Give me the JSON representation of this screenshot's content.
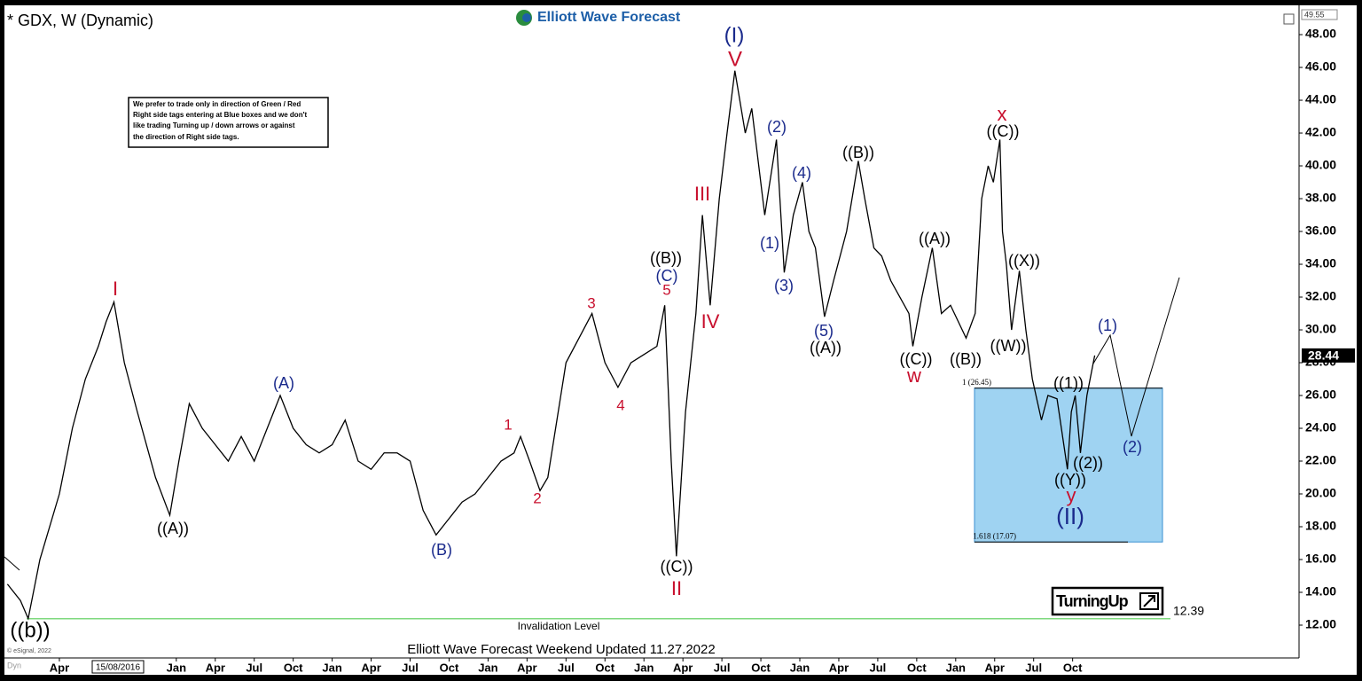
{
  "chart_data": {
    "type": "line",
    "title": "* GDX, W (Dynamic)",
    "logo": "Elliott Wave Forecast",
    "footer": "Elliott Wave Forecast Weekend Updated 11.27.2022",
    "corner_label": "Dyn",
    "copyright": "© eSignal, 2022",
    "cursor_date": "15/08/2016",
    "badge": "TurningUp",
    "note": [
      "We prefer to trade only in direction of Green / Red",
      "Right side tags entering at Blue boxes and we don't",
      "like trading Turning up / down arrows or against",
      "the direction of Right side tags."
    ],
    "xlim": [
      -1.23,
      98.43
    ],
    "ylim": [
      10,
      49.57
    ],
    "xticks": [
      {
        "value": 3,
        "label": "Apr"
      },
      {
        "value": 12,
        "label": "Jan"
      },
      {
        "value": 15,
        "label": "Apr"
      },
      {
        "value": 18,
        "label": "Jul"
      },
      {
        "value": 21,
        "label": "Oct"
      },
      {
        "value": 24,
        "label": "Jan"
      },
      {
        "value": 27,
        "label": "Apr"
      },
      {
        "value": 30,
        "label": "Jul"
      },
      {
        "value": 33,
        "label": "Oct"
      },
      {
        "value": 36,
        "label": "Jan"
      },
      {
        "value": 39,
        "label": "Apr"
      },
      {
        "value": 42,
        "label": "Jul"
      },
      {
        "value": 45,
        "label": "Oct"
      },
      {
        "value": 48,
        "label": "Jan"
      },
      {
        "value": 51,
        "label": "Apr"
      },
      {
        "value": 54,
        "label": "Jul"
      },
      {
        "value": 57,
        "label": "Oct"
      },
      {
        "value": 60,
        "label": "Jan"
      },
      {
        "value": 63,
        "label": "Apr"
      },
      {
        "value": 66,
        "label": "Jul"
      },
      {
        "value": 69,
        "label": "Oct"
      },
      {
        "value": 72,
        "label": "Jan"
      },
      {
        "value": 75,
        "label": "Apr"
      },
      {
        "value": 78,
        "label": "Jul"
      },
      {
        "value": 81,
        "label": "Oct"
      }
    ],
    "yticks": [
      {
        "value": 12,
        "label": "12.00"
      },
      {
        "value": 14,
        "label": "14.00"
      },
      {
        "value": 16,
        "label": "16.00"
      },
      {
        "value": 18,
        "label": "18.00"
      },
      {
        "value": 20,
        "label": "20.00"
      },
      {
        "value": 22,
        "label": "22.00"
      },
      {
        "value": 24,
        "label": "24.00"
      },
      {
        "value": 26,
        "label": "26.00"
      },
      {
        "value": 28,
        "label": "28.00"
      },
      {
        "value": 30,
        "label": "30.00"
      },
      {
        "value": 32,
        "label": "32.00"
      },
      {
        "value": 34,
        "label": "34.00"
      },
      {
        "value": 36,
        "label": "36.00"
      },
      {
        "value": 38,
        "label": "38.00"
      },
      {
        "value": 40,
        "label": "40.00"
      },
      {
        "value": 42,
        "label": "42.00"
      },
      {
        "value": 44,
        "label": "44.00"
      },
      {
        "value": 46,
        "label": "46.00"
      },
      {
        "value": 48,
        "label": "48.00"
      }
    ],
    "grid": false,
    "series": [
      {
        "name": "GDX",
        "color": "#000000",
        "x": [
          -1,
          0,
          0.6,
          1.5,
          3,
          4,
          5,
          6,
          6.6,
          7.2,
          8,
          9,
          10.4,
          11.5,
          12.2,
          13,
          14,
          15,
          16,
          17,
          18,
          19,
          20,
          21,
          22,
          23,
          24,
          25,
          26,
          27,
          28,
          29,
          30,
          31,
          32,
          33,
          34,
          35,
          36,
          37,
          38,
          38.5,
          39.2,
          40,
          40.6,
          41,
          42,
          43,
          44,
          45,
          46,
          47,
          48,
          49,
          49.6,
          50.1,
          50.5,
          51.2,
          52,
          52.5,
          53.1,
          53.8,
          54.4,
          55.0,
          55.8,
          56.3,
          57.3,
          58.2,
          58.8,
          59.5,
          60.2,
          60.7,
          61.2,
          61.9,
          62.6,
          63.6,
          64.5,
          65.0,
          65.7,
          66.3,
          67.0,
          67.7,
          68.4,
          68.7,
          69.4,
          70.2,
          70.9,
          71.6,
          72.8,
          73.5,
          74.0,
          74.5,
          74.9,
          75.4,
          75.6,
          75.9,
          76.3,
          76.9,
          77.4,
          77.9,
          78.6,
          79.1,
          79.8,
          80.6,
          80.9,
          81.2,
          81.6,
          82.1,
          82.7
        ],
        "values": [
          14.5,
          13.5,
          12.4,
          16,
          20,
          24,
          27,
          29,
          30.5,
          31.7,
          28,
          25,
          21,
          18.7,
          22,
          25.5,
          24,
          23,
          22,
          23.5,
          22,
          24,
          26,
          24,
          23,
          22.5,
          23,
          24.5,
          22,
          21.5,
          22.5,
          22.5,
          22,
          19,
          17.5,
          18.5,
          19.5,
          20,
          21,
          22,
          22.5,
          23.5,
          22,
          20.2,
          21,
          23,
          28,
          29.5,
          31,
          28,
          26.5,
          28,
          28.5,
          29,
          31.5,
          22,
          16.2,
          25,
          31,
          37,
          31.5,
          38,
          42,
          45.8,
          42,
          43.5,
          37,
          41.6,
          33.5,
          37,
          39,
          36,
          35,
          30.8,
          33,
          36,
          40.3,
          38,
          35,
          34.5,
          33,
          32,
          31,
          29,
          32,
          35,
          31,
          31.5,
          29.5,
          31,
          38,
          40,
          39,
          41.6,
          36,
          34,
          30,
          33.6,
          30,
          27,
          24.5,
          26,
          25.8,
          21.5,
          25,
          26,
          22.5,
          26,
          28.44
        ]
      }
    ],
    "last_price": 28.44,
    "top_price": 49.55,
    "target_box": {
      "top": 26.45,
      "bottom": 17.07,
      "top_label": "1 (26.45)",
      "bottom_label": "1.618 (17.07)",
      "color": "#9fd3f2"
    },
    "invalidation": {
      "value": 12.39,
      "label": "Invalidation Level",
      "color": "#7ed97e"
    },
    "annotations": [
      {
        "text": "(I)",
        "color": "#1a2a8c"
      },
      {
        "text": "V",
        "color": "#c8102e"
      },
      {
        "text": "I",
        "color": "#c8102e"
      },
      {
        "text": "((A))",
        "color": "#000000"
      },
      {
        "text": "(A)",
        "color": "#1a2a8c"
      },
      {
        "text": "(B)",
        "color": "#1a2a8c"
      },
      {
        "text": "1",
        "color": "#c8102e"
      },
      {
        "text": "2",
        "color": "#c8102e"
      },
      {
        "text": "3",
        "color": "#c8102e"
      },
      {
        "text": "4",
        "color": "#c8102e"
      },
      {
        "text": "5",
        "color": "#c8102e"
      },
      {
        "text": "(C)",
        "color": "#1a2a8c"
      },
      {
        "text": "((B))",
        "color": "#000000"
      },
      {
        "text": "((C))",
        "color": "#000000"
      },
      {
        "text": "II",
        "color": "#c8102e"
      },
      {
        "text": "III",
        "color": "#c8102e"
      },
      {
        "text": "IV",
        "color": "#c8102e"
      },
      {
        "text": "(2)",
        "color": "#1a2a8c"
      },
      {
        "text": "(4)",
        "color": "#1a2a8c"
      },
      {
        "text": "(1)",
        "color": "#1a2a8c"
      },
      {
        "text": "(3)",
        "color": "#1a2a8c"
      },
      {
        "text": "(5)",
        "color": "#1a2a8c"
      },
      {
        "text": "((A))",
        "color": "#000000"
      },
      {
        "text": "((B))",
        "color": "#000000"
      },
      {
        "text": "((A))",
        "color": "#000000"
      },
      {
        "text": "((C))",
        "color": "#000000"
      },
      {
        "text": "w",
        "color": "#c8102e"
      },
      {
        "text": "((B))",
        "color": "#000000"
      },
      {
        "text": "x",
        "color": "#c8102e"
      },
      {
        "text": "((C))",
        "color": "#000000"
      },
      {
        "text": "((X))",
        "color": "#000000"
      },
      {
        "text": "((W))",
        "color": "#000000"
      },
      {
        "text": "((1))",
        "color": "#000000"
      },
      {
        "text": "((2))",
        "color": "#000000"
      },
      {
        "text": "((Y))",
        "color": "#000000"
      },
      {
        "text": "y",
        "color": "#c8102e"
      },
      {
        "text": "(II)",
        "color": "#1a2a8c"
      },
      {
        "text": "(1)",
        "color": "#1a2a8c"
      },
      {
        "text": "(2)",
        "color": "#1a2a8c"
      },
      {
        "text": "((b))",
        "color": "#000000"
      }
    ]
  }
}
